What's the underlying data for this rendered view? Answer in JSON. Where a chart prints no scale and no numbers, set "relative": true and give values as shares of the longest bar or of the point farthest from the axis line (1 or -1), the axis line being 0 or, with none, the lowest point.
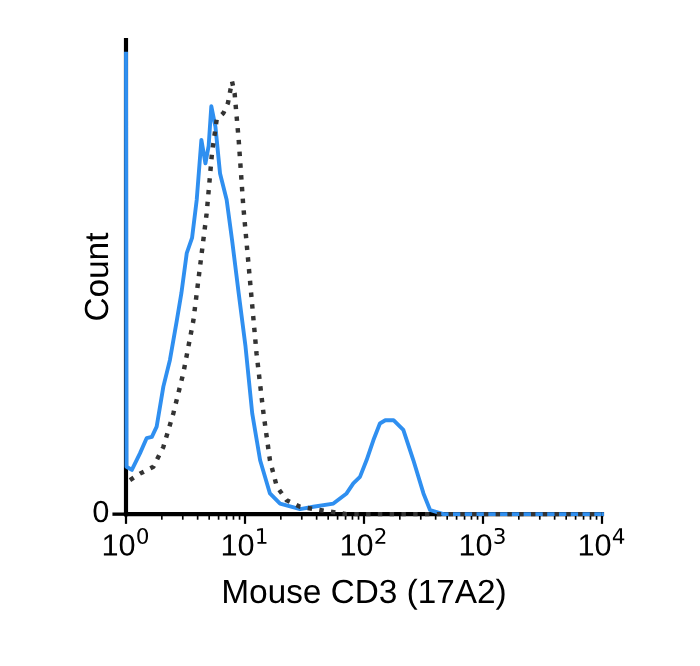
{
  "chart_data": {
    "type": "line",
    "relative": true,
    "log": "x",
    "xlabel": "Mouse CD3 (17A2)",
    "ylabel": "Count",
    "xlim": [
      1,
      10000
    ],
    "xticks": [
      {
        "value": 1,
        "label": "10$^{0}$"
      },
      {
        "value": 10,
        "label": "10$^{1}$"
      },
      {
        "value": 100,
        "label": "10$^{2}$"
      },
      {
        "value": 1000,
        "label": "10$^{3}$"
      },
      {
        "value": 10000,
        "label": "10$^{4}$"
      }
    ],
    "annotations": [
      "0"
    ],
    "grid": false,
    "legend": false,
    "marker": "none",
    "series": [
      {
        "color": "#2f8ff0",
        "line_style": "solid",
        "x": [
          1,
          1.01,
          1.12,
          1.31,
          1.49,
          1.65,
          1.81,
          2.06,
          2.34,
          2.67,
          2.92,
          3.24,
          3.59,
          3.93,
          4.3,
          4.65,
          4.95,
          5.21,
          5.64,
          6.17,
          7.01,
          7.78,
          8.85,
          10.1,
          11.5,
          13.4,
          16.2,
          19.7,
          29,
          37.5,
          55.3,
          71.4,
          81.3,
          92.5,
          105,
          120,
          136,
          151,
          177,
          214,
          260,
          316,
          359,
          465,
          10000
        ],
        "values": [
          1.0,
          0.103,
          0.096,
          0.132,
          0.165,
          0.168,
          0.19,
          0.277,
          0.335,
          0.42,
          0.48,
          0.567,
          0.6,
          0.683,
          0.813,
          0.762,
          0.8,
          0.886,
          0.842,
          0.74,
          0.683,
          0.596,
          0.48,
          0.364,
          0.219,
          0.117,
          0.045,
          0.023,
          0.011,
          0.016,
          0.023,
          0.045,
          0.067,
          0.081,
          0.117,
          0.161,
          0.197,
          0.204,
          0.204,
          0.183,
          0.117,
          0.045,
          0.009,
          0,
          0
        ]
      },
      {
        "color": "#333333",
        "line_style": "dotted",
        "x": [
          1.08,
          1.31,
          1.7,
          2.06,
          2.5,
          3.03,
          3.68,
          4.19,
          4.76,
          5.28,
          5.78,
          6.58,
          7.19,
          7.78,
          8.18,
          8.85,
          9.68,
          11.0,
          12.5,
          14.3,
          16.2,
          18.5,
          22.4,
          29,
          42.7,
          71,
          10000
        ],
        "values": [
          0.074,
          0.088,
          0.103,
          0.146,
          0.219,
          0.306,
          0.42,
          0.538,
          0.653,
          0.784,
          0.857,
          0.871,
          0.893,
          0.94,
          0.914,
          0.813,
          0.668,
          0.509,
          0.349,
          0.219,
          0.117,
          0.06,
          0.03,
          0.016,
          0.009,
          0,
          0
        ]
      }
    ]
  }
}
